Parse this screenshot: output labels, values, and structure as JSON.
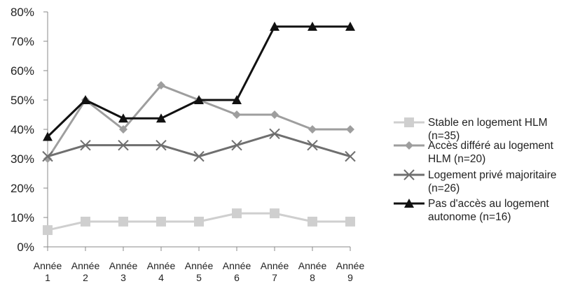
{
  "chart_data": {
    "type": "line",
    "categories": [
      "Année 1",
      "Année 2",
      "Année 3",
      "Année 4",
      "Année 5",
      "Année 6",
      "Année 7",
      "Année 8",
      "Année 9"
    ],
    "category_lines": [
      [
        "Année",
        "1"
      ],
      [
        "Année",
        "2"
      ],
      [
        "Année",
        "3"
      ],
      [
        "Année",
        "4"
      ],
      [
        "Année",
        "5"
      ],
      [
        "Année",
        "6"
      ],
      [
        "Année",
        "7"
      ],
      [
        "Année",
        "8"
      ],
      [
        "Année",
        "9"
      ]
    ],
    "y_ticks": [
      "0%",
      "10%",
      "20%",
      "30%",
      "40%",
      "50%",
      "60%",
      "70%",
      "80%"
    ],
    "ylim": [
      0,
      80
    ],
    "grid": false,
    "legend_position": "right",
    "series": [
      {
        "name": "Stable en logement HLM (n=35)",
        "name_lines": [
          "Stable en logement HLM",
          "(n=35)"
        ],
        "color": "#cfcfcf",
        "marker": "square",
        "values": [
          5.7,
          8.6,
          8.6,
          8.6,
          8.6,
          11.4,
          11.4,
          8.6,
          8.6
        ]
      },
      {
        "name": "Accès différé au logement HLM (n=20)",
        "name_lines": [
          "Accès différé au logement",
          "HLM (n=20)"
        ],
        "color": "#9e9e9e",
        "marker": "diamond",
        "values": [
          30,
          50,
          40,
          55,
          50,
          45,
          45,
          40,
          40
        ]
      },
      {
        "name": "Logement privé majoritaire (n=26)",
        "name_lines": [
          "Logement privé majoritaire",
          "(n=26)"
        ],
        "color": "#6f6f6f",
        "marker": "x",
        "values": [
          30.8,
          34.6,
          34.6,
          34.6,
          30.8,
          34.6,
          38.5,
          34.6,
          30.8
        ]
      },
      {
        "name": "Pas d'accès au logement autonome (n=16)",
        "name_lines": [
          "Pas d'accès au logement",
          "autonome (n=16)"
        ],
        "color": "#111111",
        "marker": "triangle",
        "values": [
          37.5,
          50,
          43.75,
          43.75,
          50,
          50,
          75,
          75,
          75
        ]
      }
    ]
  }
}
